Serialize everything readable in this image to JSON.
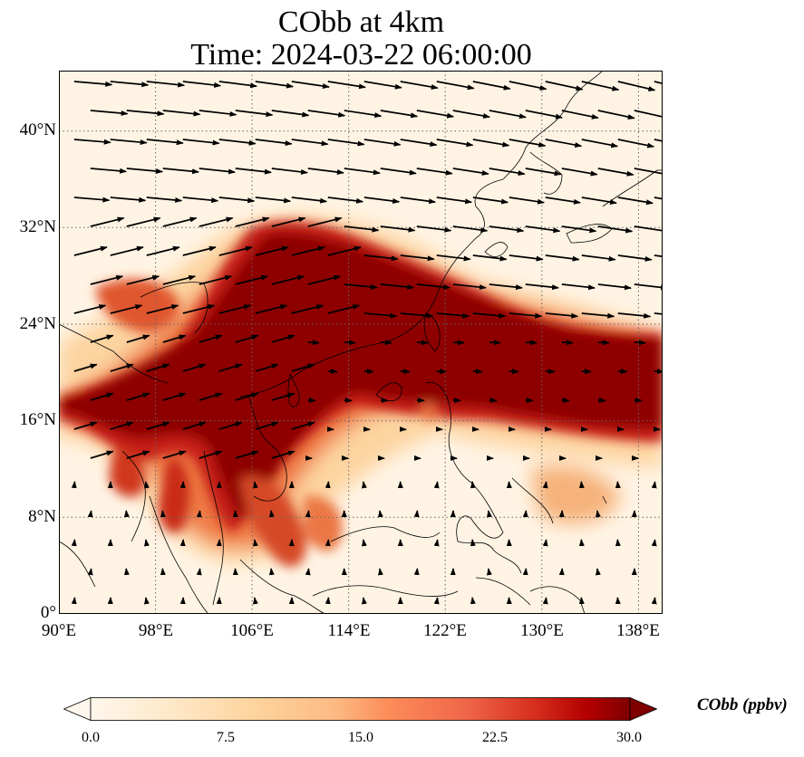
{
  "figure": {
    "title_line1": "CObb at 4km",
    "title_line2": "Time: 2024-03-22 06:00:00"
  },
  "map": {
    "projection": "PlateCarree",
    "lon_range": [
      90,
      140
    ],
    "lat_range": [
      0,
      45
    ],
    "gridlines": "dotted",
    "coastlines": true,
    "lon_ticks": [
      "90°E",
      "98°E",
      "106°E",
      "114°E",
      "122°E",
      "130°E",
      "138°E"
    ],
    "lat_ticks": [
      "0°",
      "8°N",
      "16°N",
      "24°N",
      "32°N",
      "40°N"
    ],
    "field_variable": "CObb",
    "overlay": "wind vectors",
    "colormap": "OrRd",
    "colors": {
      "low": "#fff5e7",
      "mid": "#f6a35e",
      "high": "#7f0000",
      "vector": "#000000"
    }
  },
  "colorbar": {
    "ticks": [
      "0.0",
      "7.5",
      "15.0",
      "22.5",
      "30.0"
    ],
    "min": 0,
    "max": 30,
    "extend": "both",
    "label": "CObb (ppbv)"
  }
}
